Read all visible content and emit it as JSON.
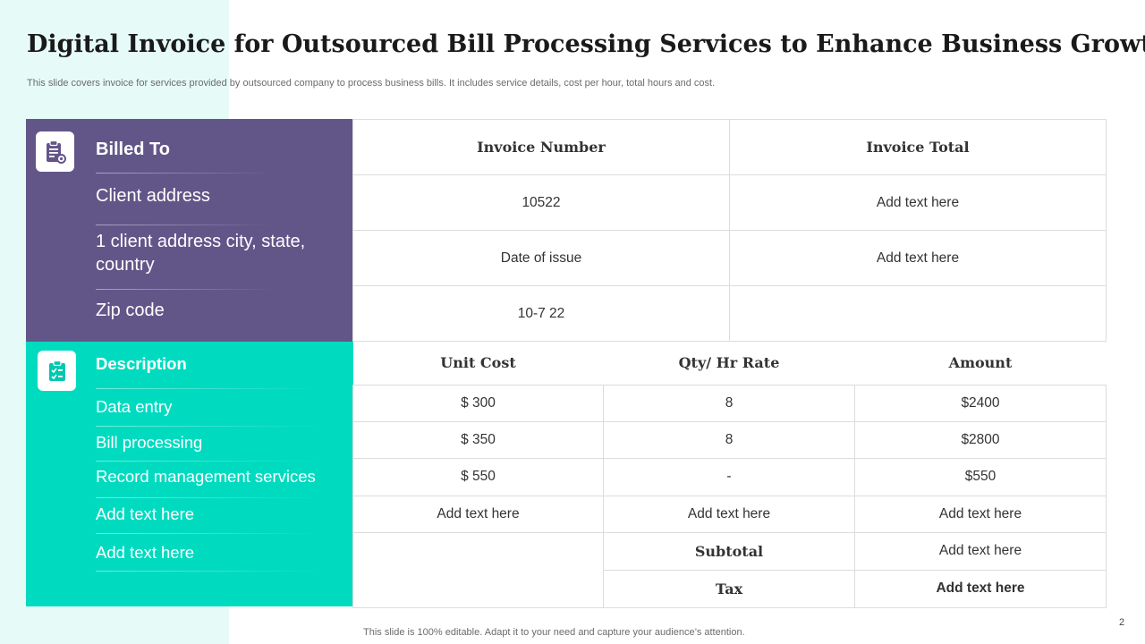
{
  "slide": {
    "title": "Digital Invoice for Outsourced Bill Processing Services to Enhance Business Growth",
    "subtitle": "This slide covers invoice for  services provided by outsourced company to process business bills. It includes  service details, cost per hour, total hours and cost.",
    "footer": "This slide is 100% editable. Adapt it to your need and capture your audience’s attention.",
    "page_number": "2"
  },
  "billed_to": {
    "icon": "clipboard-gear-icon",
    "heading": "Billed  To",
    "lines": [
      "Client address",
      "1 client address city, state, country",
      "Zip code"
    ]
  },
  "invoice": {
    "headers": [
      "Invoice Number",
      "Invoice Total"
    ],
    "rows": [
      [
        "10522",
        "Add text here"
      ],
      [
        "Date of issue",
        "Add text here"
      ],
      [
        "10-7 22",
        ""
      ]
    ]
  },
  "description": {
    "icon": "clipboard-check-icon",
    "heading": "Description",
    "items": [
      "Data entry",
      "Bill processing",
      "Record management services",
      "Add text here",
      "Add text here"
    ]
  },
  "items_table": {
    "headers": [
      "Unit Cost",
      "Qty/ Hr Rate",
      "Amount"
    ],
    "rows": [
      [
        "$ 300",
        "8",
        "$2400"
      ],
      [
        "$ 350",
        "8",
        "$2800"
      ],
      [
        "$ 550",
        "-",
        "$550"
      ],
      [
        "Add text here",
        "Add text here",
        "Add text here"
      ]
    ],
    "subtotal_label": "Subtotal",
    "subtotal_value": "Add text here",
    "tax_label": "Tax",
    "tax_value": "Add text here"
  },
  "colors": {
    "billed_panel": "#625689",
    "description_panel": "#00dbc0",
    "header_text": "#129e8c",
    "left_strip": "#e6fbf8"
  }
}
